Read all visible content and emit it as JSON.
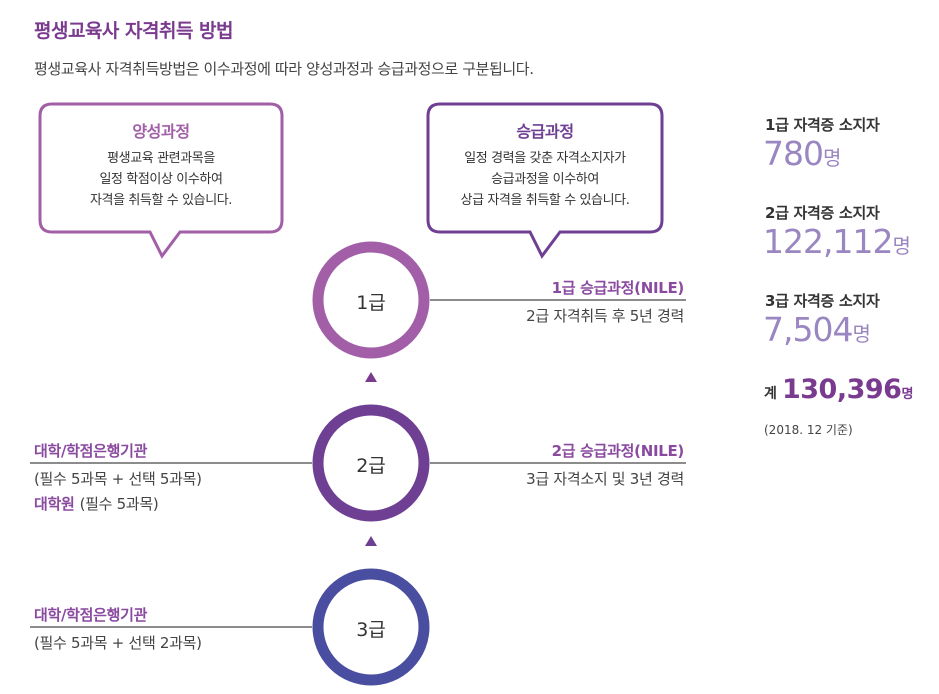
{
  "title": "평생교육사 자격취득 방법",
  "subtitle": "평생교육사 자격취득방법은 이수과정에 따라 양성과정과 승급과정으로 구분됩니다.",
  "bubbles": {
    "training": {
      "title": "양성과정",
      "lines": [
        "평생교육 관련과목을",
        "일정 학점이상 이수하여",
        "자격을 취득할 수 있습니다."
      ]
    },
    "promotion": {
      "title": "승급과정",
      "lines": [
        "일정 경력을 갖춘 자격소지자가",
        "승급과정을 이수하여",
        "상급 자격을 취득할 수 있습니다."
      ]
    }
  },
  "grades": [
    {
      "label": "1급",
      "color": "#a25fa8"
    },
    {
      "label": "2급",
      "color": "#6f3f93"
    },
    {
      "label": "3급",
      "color": "#4a4ea0"
    }
  ],
  "routes": {
    "grade1_promo": {
      "title": "1급 승급과정(NILE)",
      "sub": "2급 자격취득 후 5년 경력"
    },
    "grade2_promo": {
      "title": "2급 승급과정(NILE)",
      "sub": "3급 자격소지 및 3년 경력"
    },
    "grade2_left": {
      "title": "대학/학점은행기관",
      "sub": "(필수 5과목 + 선택 5과목)",
      "title2": "대학원",
      "sub2": "(필수 5과목)"
    },
    "grade3_left": {
      "title": "대학/학점은행기관",
      "sub": "(필수 5과목 + 선택 2과목)"
    }
  },
  "stats": [
    {
      "label": "1급 자격증 소지자",
      "value": "780",
      "unit": "명"
    },
    {
      "label": "2급 자격증 소지자",
      "value": "122,112",
      "unit": "명"
    },
    {
      "label": "3급 자격증 소지자",
      "value": "7,504",
      "unit": "명"
    }
  ],
  "total": {
    "prefix": "계",
    "value": "130,396",
    "unit": "명"
  },
  "footnote": "(2018. 12 기준)",
  "colors": {
    "accent": "#7a3b8f",
    "training": "#a25fa8",
    "promotion": "#6f3f93",
    "stat_value": "#9a86c0"
  }
}
